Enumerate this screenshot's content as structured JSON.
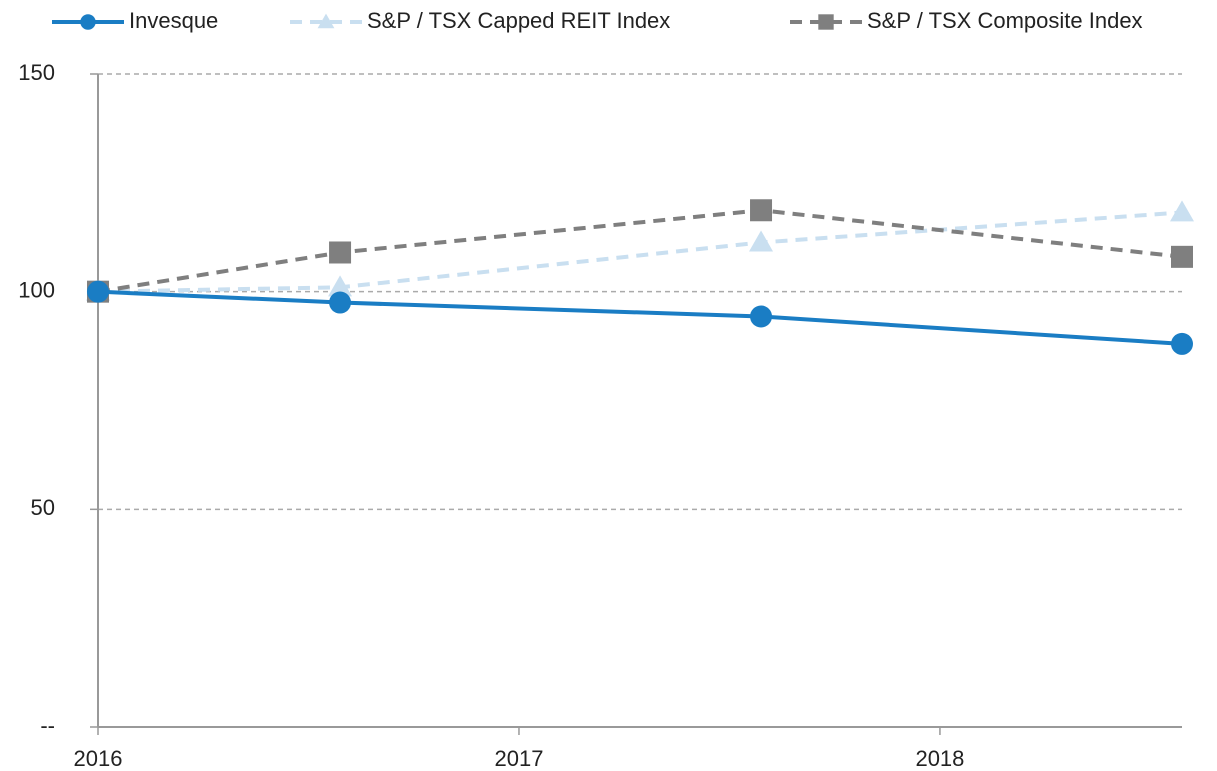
{
  "chart_data": {
    "type": "line",
    "x": [
      2016,
      2016.575,
      2017.575,
      2018.575
    ],
    "xlim": [
      2016,
      2018.575
    ],
    "xticks": [
      2016,
      2017,
      2018
    ],
    "ylim": [
      0,
      150
    ],
    "yticks": [
      {
        "value": 0,
        "label": "--"
      },
      50,
      100,
      150
    ],
    "grid": true,
    "legend": "top",
    "series": [
      {
        "name": "Invesque",
        "color": "#1a7dc4",
        "marker": "circle",
        "dash": "solid",
        "values": [
          100,
          97.5,
          94.3,
          88.0
        ]
      },
      {
        "name": "S&P / TSX Capped REIT Index",
        "color": "#c9dff0",
        "marker": "triangle",
        "dash": "dashed",
        "values": [
          100,
          101,
          111.3,
          118.2
        ]
      },
      {
        "name": "S&P / TSX Composite Index",
        "color": "#7f7f7f",
        "marker": "square",
        "dash": "dashed",
        "values": [
          100,
          109,
          118.7,
          108
        ]
      }
    ]
  }
}
